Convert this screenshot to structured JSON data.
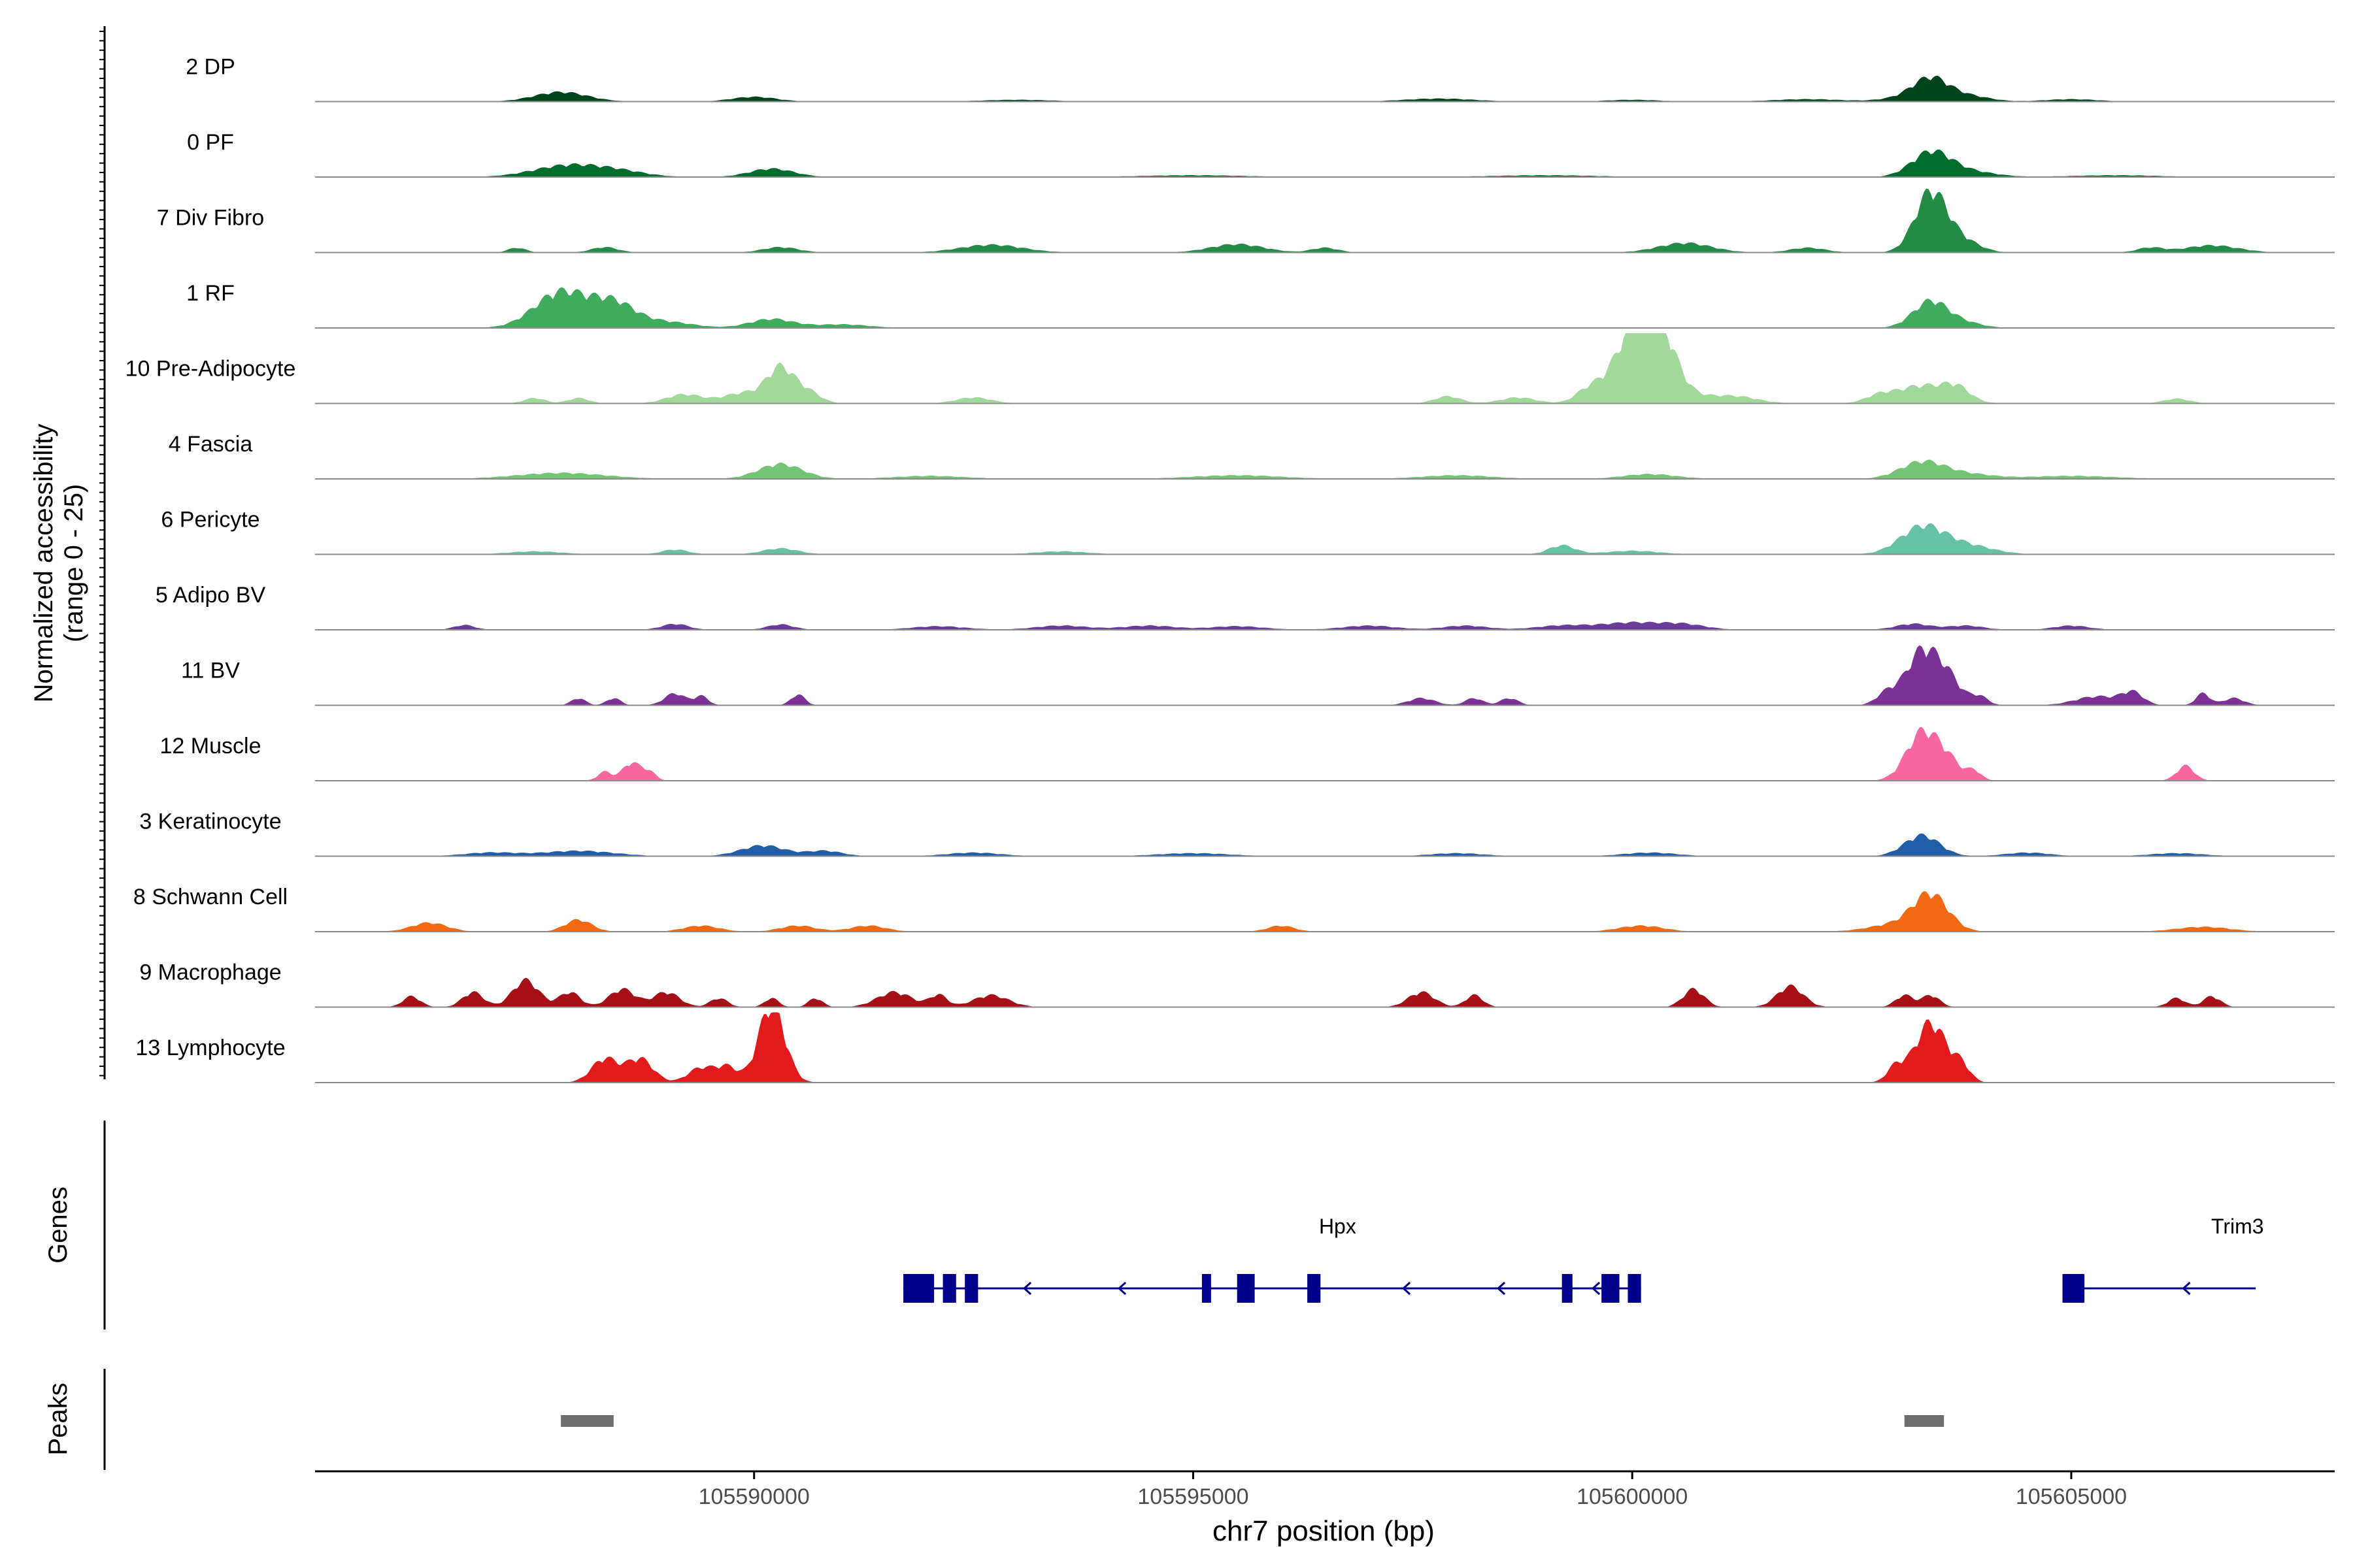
{
  "chart_data": {
    "type": "area",
    "region": {
      "chrom": "chr7",
      "xlim": [
        105585000,
        105608000
      ]
    },
    "xlabel": "chr7 position (bp)",
    "x_ticks": [
      105590000,
      105595000,
      105600000,
      105605000
    ],
    "ylabel_line1": "Normalized accessibility",
    "ylabel_line2": "(range 0 - 25)",
    "y_range": [
      0,
      25
    ],
    "genes_label": "Genes",
    "peaks_label": "Peaks",
    "tracks": [
      {
        "name": "2 DP",
        "color": "#00441b",
        "peaks": [
          [
            105587800,
            1.6,
            300
          ],
          [
            105590000,
            0.8,
            250
          ],
          [
            105593000,
            0.3,
            400
          ],
          [
            105597800,
            0.5,
            400
          ],
          [
            105600000,
            0.3,
            300
          ],
          [
            105602000,
            0.4,
            400
          ],
          [
            105603100,
            0.6,
            250
          ],
          [
            105603400,
            3.6,
            200
          ],
          [
            105603800,
            1.0,
            250
          ],
          [
            105605000,
            0.4,
            300
          ]
        ]
      },
      {
        "name": "0 PF",
        "color": "#006d2c",
        "peaks": [
          [
            105587900,
            2.0,
            400
          ],
          [
            105588500,
            0.7,
            300
          ],
          [
            105590200,
            1.4,
            250
          ],
          [
            105595000,
            0.3,
            600
          ],
          [
            105599000,
            0.3,
            600
          ],
          [
            105603400,
            4.0,
            220
          ],
          [
            105603800,
            1.0,
            300
          ],
          [
            105605500,
            0.3,
            500
          ]
        ]
      },
      {
        "name": "7 Div Fibro",
        "color": "#238b45",
        "peaks": [
          [
            105587300,
            0.8,
            100
          ],
          [
            105588300,
            0.9,
            150
          ],
          [
            105590300,
            0.9,
            200
          ],
          [
            105592700,
            1.3,
            350
          ],
          [
            105595500,
            1.4,
            300
          ],
          [
            105596500,
            0.8,
            150
          ],
          [
            105600600,
            1.6,
            300
          ],
          [
            105602000,
            0.8,
            200
          ],
          [
            105603400,
            10.0,
            180
          ],
          [
            105603750,
            2.0,
            200
          ],
          [
            105605900,
            0.8,
            150
          ],
          [
            105606600,
            1.2,
            300
          ]
        ]
      },
      {
        "name": "1 RF",
        "color": "#41ab5d",
        "peaks": [
          [
            105587800,
            6.0,
            300
          ],
          [
            105588400,
            4.0,
            250
          ],
          [
            105589000,
            1.0,
            300
          ],
          [
            105590200,
            1.5,
            250
          ],
          [
            105591000,
            0.6,
            300
          ],
          [
            105603400,
            4.5,
            200
          ],
          [
            105603800,
            0.8,
            200
          ]
        ]
      },
      {
        "name": "10 Pre-Adipocyte",
        "color": "#a1d99b",
        "peaks": [
          [
            105587500,
            0.9,
            120
          ],
          [
            105588000,
            0.9,
            120
          ],
          [
            105589200,
            1.5,
            200
          ],
          [
            105589900,
            1.8,
            250
          ],
          [
            105590300,
            5.5,
            150
          ],
          [
            105590600,
            2.0,
            150
          ],
          [
            105592500,
            1.0,
            200
          ],
          [
            105597900,
            1.2,
            150
          ],
          [
            105598700,
            1.0,
            200
          ],
          [
            105599500,
            2.0,
            150
          ],
          [
            105600050,
            12.0,
            250
          ],
          [
            105600300,
            8.0,
            200
          ],
          [
            105600700,
            1.0,
            300
          ],
          [
            105601200,
            1.0,
            250
          ],
          [
            105602800,
            1.0,
            150
          ],
          [
            105603300,
            3.0,
            300
          ],
          [
            105603700,
            2.0,
            150
          ],
          [
            105606200,
            0.8,
            150
          ]
        ]
      },
      {
        "name": "4 Fascia",
        "color": "#74c476",
        "peaks": [
          [
            105587800,
            1.0,
            500
          ],
          [
            105590300,
            2.5,
            250
          ],
          [
            105592000,
            0.5,
            400
          ],
          [
            105595500,
            0.6,
            500
          ],
          [
            105598000,
            0.6,
            400
          ],
          [
            105600200,
            0.8,
            300
          ],
          [
            105603300,
            2.8,
            250
          ],
          [
            105603800,
            0.8,
            300
          ],
          [
            105605000,
            0.5,
            500
          ]
        ]
      },
      {
        "name": "6 Pericyte",
        "color": "#66c2a4",
        "peaks": [
          [
            105587500,
            0.5,
            300
          ],
          [
            105589100,
            0.8,
            150
          ],
          [
            105590300,
            1.0,
            200
          ],
          [
            105593500,
            0.5,
            300
          ],
          [
            105599200,
            1.5,
            150
          ],
          [
            105600000,
            0.6,
            300
          ],
          [
            105603300,
            4.5,
            250
          ],
          [
            105603800,
            1.5,
            300
          ]
        ]
      },
      {
        "name": "5 Adipo BV",
        "color": "#6a3d9a",
        "peaks": [
          [
            105586700,
            0.8,
            120
          ],
          [
            105589100,
            1.0,
            150
          ],
          [
            105590300,
            0.9,
            150
          ],
          [
            105592100,
            0.6,
            300
          ],
          [
            105593500,
            0.7,
            300
          ],
          [
            105594500,
            0.7,
            300
          ],
          [
            105595500,
            0.6,
            300
          ],
          [
            105597000,
            0.7,
            300
          ],
          [
            105598100,
            0.7,
            250
          ],
          [
            105599200,
            0.7,
            300
          ],
          [
            105600000,
            1.2,
            350
          ],
          [
            105600600,
            0.8,
            250
          ],
          [
            105603200,
            1.0,
            200
          ],
          [
            105603800,
            0.7,
            200
          ],
          [
            105605000,
            0.7,
            200
          ]
        ]
      },
      {
        "name": "11 BV",
        "color": "#7b3294",
        "peaks": [
          [
            105588000,
            1.2,
            80
          ],
          [
            105588400,
            1.2,
            80
          ],
          [
            105589100,
            2.0,
            120
          ],
          [
            105589400,
            1.5,
            80
          ],
          [
            105590500,
            1.8,
            80
          ],
          [
            105597600,
            1.2,
            150
          ],
          [
            105598200,
            1.2,
            100
          ],
          [
            105598600,
            1.2,
            100
          ],
          [
            105602900,
            2.0,
            120
          ],
          [
            105603300,
            9.0,
            180
          ],
          [
            105603600,
            4.0,
            150
          ],
          [
            105603950,
            1.5,
            100
          ],
          [
            105605300,
            1.5,
            250
          ],
          [
            105605700,
            2.0,
            120
          ],
          [
            105606500,
            2.0,
            80
          ],
          [
            105606850,
            1.2,
            120
          ]
        ]
      },
      {
        "name": "12 Muscle",
        "color": "#f768a1",
        "peaks": [
          [
            105588300,
            1.5,
            80
          ],
          [
            105588600,
            3.0,
            100
          ],
          [
            105588800,
            1.5,
            80
          ],
          [
            105603300,
            8.0,
            180
          ],
          [
            105603600,
            3.0,
            150
          ],
          [
            105603900,
            1.5,
            80
          ],
          [
            105606300,
            2.5,
            100
          ]
        ]
      },
      {
        "name": "3 Keratinocyte",
        "color": "#225ea8",
        "peaks": [
          [
            105587000,
            0.6,
            300
          ],
          [
            105588000,
            0.9,
            400
          ],
          [
            105590100,
            1.8,
            250
          ],
          [
            105590800,
            0.9,
            200
          ],
          [
            105592500,
            0.6,
            300
          ],
          [
            105595000,
            0.5,
            400
          ],
          [
            105598000,
            0.5,
            300
          ],
          [
            105600200,
            0.6,
            300
          ],
          [
            105603300,
            3.5,
            200
          ],
          [
            105604500,
            0.6,
            250
          ],
          [
            105606200,
            0.5,
            300
          ]
        ]
      },
      {
        "name": "8 Schwann Cell",
        "color": "#f16913",
        "peaks": [
          [
            105586300,
            1.5,
            200
          ],
          [
            105588000,
            2.0,
            150
          ],
          [
            105589400,
            1.0,
            200
          ],
          [
            105590500,
            1.0,
            200
          ],
          [
            105591300,
            1.0,
            200
          ],
          [
            105596000,
            1.0,
            150
          ],
          [
            105600100,
            1.0,
            250
          ],
          [
            105603000,
            1.2,
            300
          ],
          [
            105603400,
            6.0,
            200
          ],
          [
            105606500,
            0.8,
            300
          ]
        ]
      },
      {
        "name": "9 Macrophage",
        "color": "#a50f15",
        "peaks": [
          [
            105586100,
            1.8,
            100
          ],
          [
            105586800,
            2.5,
            120
          ],
          [
            105587400,
            4.5,
            150
          ],
          [
            105587900,
            2.5,
            120
          ],
          [
            105588500,
            3.0,
            150
          ],
          [
            105589000,
            2.5,
            150
          ],
          [
            105589600,
            1.5,
            100
          ],
          [
            105590200,
            1.5,
            80
          ],
          [
            105590700,
            1.5,
            80
          ],
          [
            105591600,
            2.5,
            200
          ],
          [
            105592100,
            2.0,
            100
          ],
          [
            105592700,
            2.0,
            200
          ],
          [
            105597600,
            2.5,
            150
          ],
          [
            105598200,
            2.0,
            100
          ],
          [
            105600700,
            3.0,
            120
          ],
          [
            105601800,
            3.5,
            150
          ],
          [
            105603100,
            2.0,
            100
          ],
          [
            105603400,
            2.0,
            100
          ],
          [
            105606200,
            1.5,
            100
          ],
          [
            105606600,
            1.8,
            100
          ]
        ]
      },
      {
        "name": "13 Lymphocyte",
        "color": "#e31a1c",
        "peaks": [
          [
            105588300,
            4.0,
            150
          ],
          [
            105588700,
            4.0,
            150
          ],
          [
            105589400,
            2.5,
            150
          ],
          [
            105589700,
            2.5,
            120
          ],
          [
            105590200,
            13.0,
            150
          ],
          [
            105603000,
            2.5,
            100
          ],
          [
            105603400,
            10.0,
            180
          ],
          [
            105603750,
            2.5,
            100
          ]
        ]
      }
    ],
    "genes": [
      {
        "name": "Hpx",
        "start": 105591700,
        "end": 105600100,
        "strand": "-",
        "exons": [
          [
            105591700,
            105592050
          ],
          [
            105592150,
            105592300
          ],
          [
            105592400,
            105592550
          ],
          [
            105595100,
            105595200
          ],
          [
            105595500,
            105595700
          ],
          [
            105596300,
            105596450
          ],
          [
            105599200,
            105599320
          ],
          [
            105599650,
            105599700
          ],
          [
            105599750,
            105599850
          ],
          [
            105599950,
            105600100
          ]
        ]
      },
      {
        "name": "Trim3",
        "start": 105604900,
        "end": 105607100,
        "strand": "-",
        "exons": [
          [
            105604900,
            105605150
          ]
        ]
      }
    ],
    "peak_regions": [
      [
        105587800,
        105588400
      ],
      [
        105603100,
        105603550
      ]
    ]
  }
}
